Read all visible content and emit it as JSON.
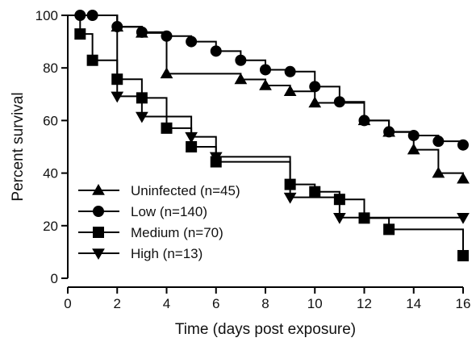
{
  "chart_data": {
    "type": "line",
    "subtype": "kaplan-meier-step",
    "title": "",
    "xlabel": "Time (days post exposure)",
    "ylabel": "Percent survival",
    "xlim": [
      0,
      16
    ],
    "ylim": [
      0,
      100
    ],
    "xticks": [
      0,
      2,
      4,
      6,
      8,
      10,
      12,
      14,
      16
    ],
    "yticks": [
      0,
      20,
      40,
      60,
      80,
      100
    ],
    "grid": false,
    "legend_position": "bottom-left",
    "series": [
      {
        "name": "Uninfected (n=45)",
        "marker": "triangle-up",
        "color": "#000000",
        "steps": [
          [
            0,
            100
          ],
          [
            2,
            95.6
          ],
          [
            3,
            93.3
          ],
          [
            4,
            77.8
          ],
          [
            7,
            75.6
          ],
          [
            8,
            73.3
          ],
          [
            9,
            71.1
          ],
          [
            10,
            66.7
          ],
          [
            11,
            66.7
          ],
          [
            12,
            60
          ],
          [
            13,
            55.6
          ],
          [
            14,
            48.9
          ],
          [
            15,
            40
          ],
          [
            16,
            37.8
          ]
        ],
        "markers": [
          [
            2,
            95.6
          ],
          [
            3,
            93.3
          ],
          [
            4,
            77.8
          ],
          [
            7,
            75.6
          ],
          [
            8,
            73.3
          ],
          [
            9,
            71.1
          ],
          [
            10,
            66.7
          ],
          [
            12,
            60
          ],
          [
            13,
            55.6
          ],
          [
            14,
            48.9
          ],
          [
            15,
            40
          ],
          [
            16,
            37.8
          ]
        ]
      },
      {
        "name": "Low (n=140)",
        "marker": "circle",
        "color": "#000000",
        "steps": [
          [
            0,
            100
          ],
          [
            0.5,
            100
          ],
          [
            1,
            100
          ],
          [
            2,
            95.7
          ],
          [
            3,
            93.6
          ],
          [
            4,
            92.1
          ],
          [
            5,
            90
          ],
          [
            6,
            86.4
          ],
          [
            7,
            82.9
          ],
          [
            8,
            79.3
          ],
          [
            9,
            78.6
          ],
          [
            10,
            72.9
          ],
          [
            11,
            67.1
          ],
          [
            12,
            60
          ],
          [
            13,
            55.7
          ],
          [
            14,
            54.3
          ],
          [
            15,
            52.1
          ],
          [
            16,
            50.7
          ]
        ],
        "markers": [
          [
            0.5,
            100
          ],
          [
            1,
            100
          ],
          [
            2,
            95.7
          ],
          [
            3,
            93.6
          ],
          [
            4,
            92.1
          ],
          [
            5,
            90
          ],
          [
            6,
            86.4
          ],
          [
            7,
            82.9
          ],
          [
            8,
            79.3
          ],
          [
            9,
            78.6
          ],
          [
            10,
            72.9
          ],
          [
            11,
            67.1
          ],
          [
            12,
            60
          ],
          [
            13,
            55.7
          ],
          [
            14,
            54.3
          ],
          [
            15,
            52.1
          ],
          [
            16,
            50.7
          ]
        ]
      },
      {
        "name": "Medium (n=70)",
        "marker": "square",
        "color": "#000000",
        "steps": [
          [
            0,
            100
          ],
          [
            0.5,
            92.9
          ],
          [
            1,
            82.9
          ],
          [
            2,
            75.7
          ],
          [
            3,
            68.6
          ],
          [
            4,
            57.1
          ],
          [
            5,
            50
          ],
          [
            6,
            44.3
          ],
          [
            9,
            35.7
          ],
          [
            10,
            32.9
          ],
          [
            11,
            30
          ],
          [
            12,
            22.9
          ],
          [
            13,
            18.6
          ],
          [
            16,
            8.6
          ]
        ],
        "markers": [
          [
            0.5,
            92.9
          ],
          [
            1,
            82.9
          ],
          [
            2,
            75.7
          ],
          [
            3,
            68.6
          ],
          [
            4,
            57.1
          ],
          [
            5,
            50
          ],
          [
            6,
            44.3
          ],
          [
            9,
            35.7
          ],
          [
            10,
            32.9
          ],
          [
            11,
            30
          ],
          [
            12,
            22.9
          ],
          [
            13,
            18.6
          ],
          [
            16,
            8.6
          ]
        ]
      },
      {
        "name": "High (n=13)",
        "marker": "triangle-down",
        "color": "#000000",
        "steps": [
          [
            0,
            100
          ],
          [
            2,
            69.2
          ],
          [
            3,
            61.5
          ],
          [
            5,
            53.8
          ],
          [
            6,
            46.2
          ],
          [
            9,
            30.8
          ],
          [
            11,
            23.1
          ],
          [
            16,
            23.1
          ]
        ],
        "markers": [
          [
            2,
            69.2
          ],
          [
            3,
            61.5
          ],
          [
            5,
            53.8
          ],
          [
            6,
            46.2
          ],
          [
            9,
            30.8
          ],
          [
            11,
            23.1
          ],
          [
            16,
            23.1
          ]
        ]
      }
    ]
  }
}
